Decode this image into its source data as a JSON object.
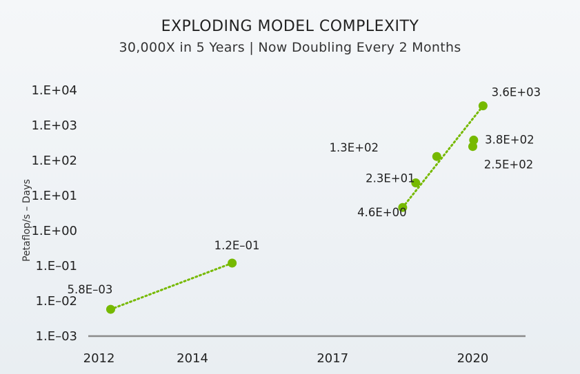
{
  "chart_data": {
    "type": "scatter",
    "title": "EXPLODING MODEL COMPLEXITY",
    "subtitle": "30,000X in 5 Years  |  Now Doubling Every 2 Months",
    "xlabel": "",
    "ylabel": "Petaflop/s – Days",
    "yscale": "log",
    "ylim": [
      0.001,
      10000
    ],
    "xlim": [
      2011.8,
      2021.1
    ],
    "x_tick_labels": [
      "2012",
      "2014",
      "2017",
      "2020"
    ],
    "y_tick_labels": [
      "1.E–03",
      "1.E–02",
      "1.E–01",
      "1.E+00",
      "1.E+01",
      "1.E+02",
      "1.E+03",
      "1.E+04"
    ],
    "grid": false,
    "point_color": "#76b900",
    "points": [
      {
        "x": 2012.25,
        "y": 0.0058,
        "label": "5.8E–03"
      },
      {
        "x": 2014.85,
        "y": 0.12,
        "label": "1.2E–01"
      },
      {
        "x": 2018.5,
        "y": 4.6,
        "label": "4.6E+00"
      },
      {
        "x": 2018.78,
        "y": 23,
        "label": "2.3E+01"
      },
      {
        "x": 2019.23,
        "y": 130,
        "label": "1.3E+02"
      },
      {
        "x": 2020.0,
        "y": 250,
        "label": "2.5E+02"
      },
      {
        "x": 2020.02,
        "y": 380,
        "label": "3.8E+02"
      },
      {
        "x": 2020.22,
        "y": 3600,
        "label": "3.6E+03"
      }
    ],
    "trendlines": [
      {
        "x": [
          2012.25,
          2014.85
        ],
        "y": [
          0.0058,
          0.12
        ]
      },
      {
        "x": [
          2018.5,
          2020.22
        ],
        "y": [
          4.6,
          3600
        ]
      }
    ]
  }
}
